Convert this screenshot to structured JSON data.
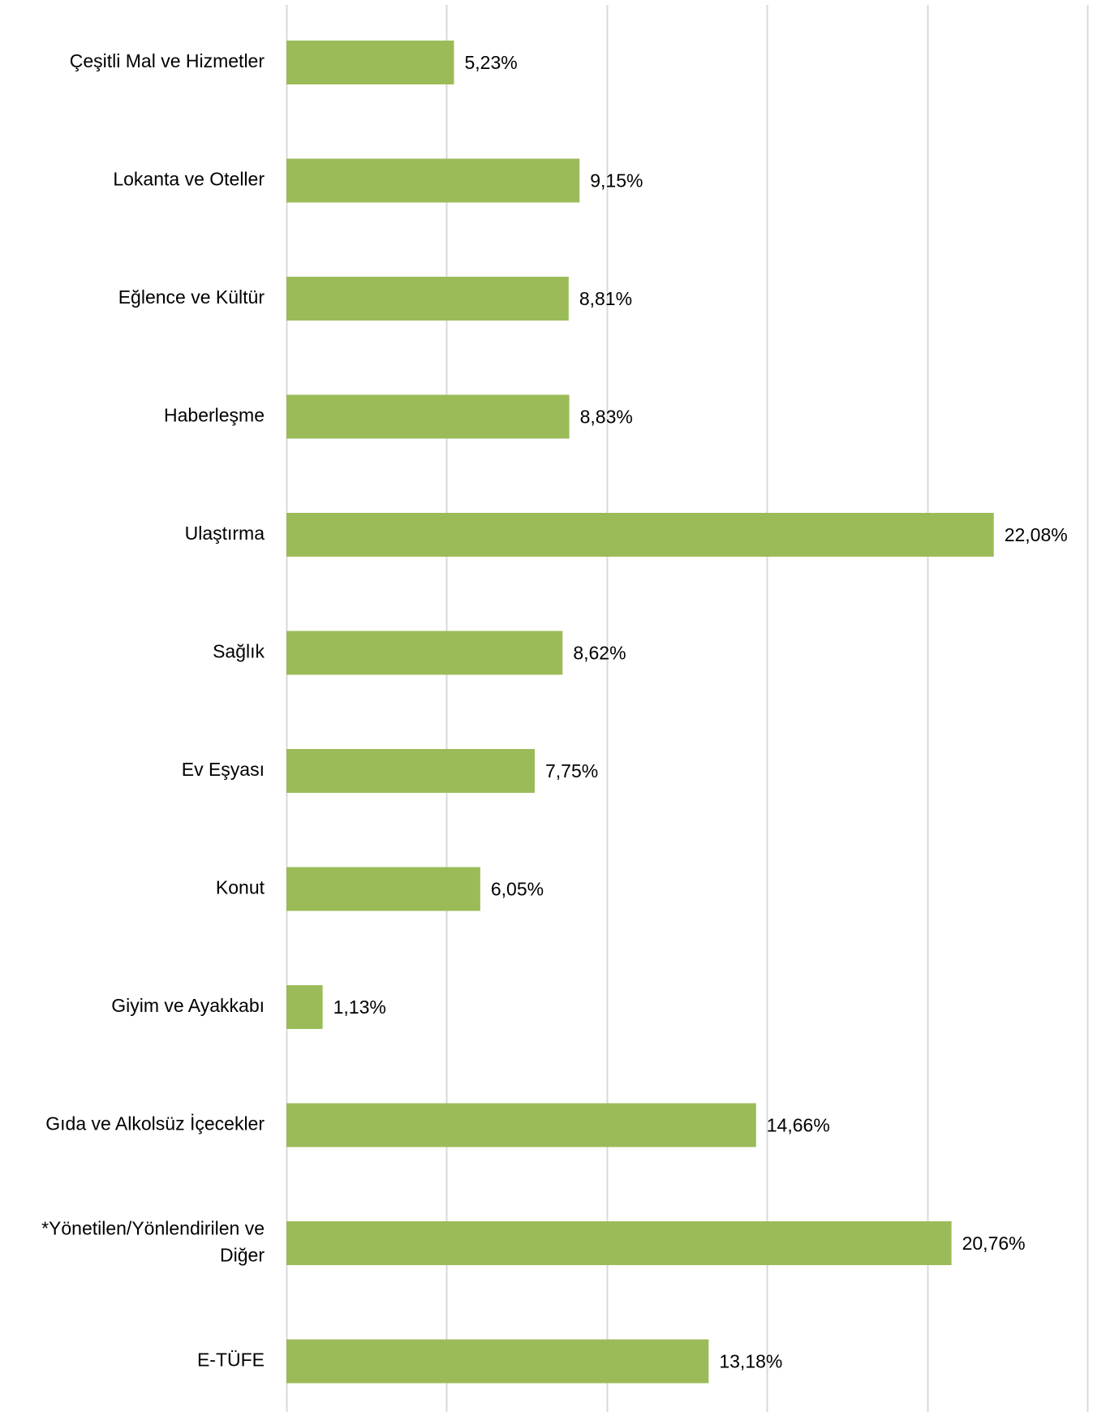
{
  "chart_data": {
    "type": "bar",
    "orientation": "horizontal",
    "title": "",
    "xlabel": "",
    "ylabel": "",
    "categories": [
      "Çeşitli Mal ve Hizmetler",
      "Lokanta ve Oteller",
      "Eğlence ve Kültür",
      "Haberleşme",
      "Ulaştırma",
      "Sağlık",
      "Ev Eşyası",
      "Konut",
      "Giyim ve Ayakkabı",
      "Gıda ve Alkolsüz İçecekler",
      "*Yönetilen/Yönlendirilen ve Diğer",
      "E-TÜFE"
    ],
    "category_lines": [
      [
        "Çeşitli Mal ve Hizmetler"
      ],
      [
        "Lokanta ve Oteller"
      ],
      [
        "Eğlence ve Kültür"
      ],
      [
        "Haberleşme"
      ],
      [
        "Ulaştırma"
      ],
      [
        "Sağlık"
      ],
      [
        "Ev Eşyası"
      ],
      [
        "Konut"
      ],
      [
        "Giyim ve Ayakkabı"
      ],
      [
        "Gıda ve Alkolsüz İçecekler"
      ],
      [
        "*Yönetilen/Yönlendirilen ve",
        "Diğer"
      ],
      [
        "E-TÜFE"
      ]
    ],
    "values": [
      5.23,
      9.15,
      8.81,
      8.83,
      22.08,
      8.62,
      7.75,
      6.05,
      1.13,
      14.66,
      20.76,
      13.18
    ],
    "value_labels": [
      "5,23%",
      "9,15%",
      "8,81%",
      "8,83%",
      "22,08%",
      "8,62%",
      "7,75%",
      "6,05%",
      "1,13%",
      "14,66%",
      "20,76%",
      "13,18%"
    ],
    "xlim": [
      0,
      25
    ],
    "x_gridlines": [
      0,
      5,
      10,
      15,
      20,
      25
    ],
    "grid": true,
    "legend": "none",
    "bar_color": "#9BBB59",
    "grid_color": "#D9D9D9"
  }
}
